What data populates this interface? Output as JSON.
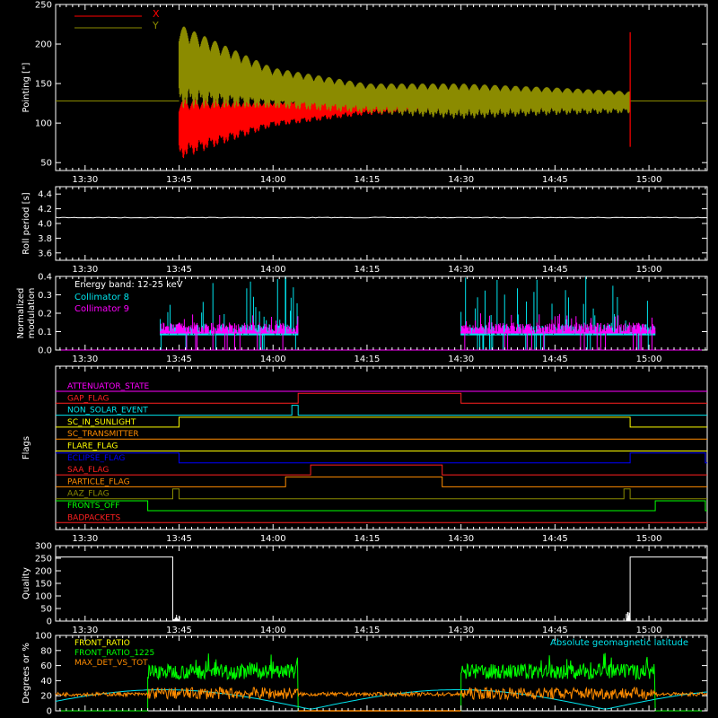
{
  "chart_data": [
    {
      "type": "line",
      "ylabel": "Pointing [\"]",
      "ylim": [
        40,
        250
      ],
      "yticks": [
        50,
        100,
        150,
        200,
        250
      ],
      "xlim": [
        "13:25",
        "15:09"
      ],
      "xticks": [
        "13:30",
        "13:45",
        "14:00",
        "14:15",
        "14:30",
        "14:45",
        "15:00"
      ],
      "legend": [
        {
          "name": "X",
          "color": "#ff0000"
        },
        {
          "name": "Y",
          "color": "#8b8b00"
        }
      ],
      "series": [
        {
          "name": "X",
          "color": "#ff0000",
          "baseline": 128,
          "active": [
            "13:45",
            "14:57"
          ],
          "upper": [
            [
              "13:45",
              130
            ],
            [
              "14:00",
              128
            ],
            [
              "14:15",
              137
            ],
            [
              "14:30",
              140
            ],
            [
              "14:45",
              138
            ],
            [
              "14:57",
              136
            ]
          ],
          "lower": [
            [
              "13:45",
              53
            ],
            [
              "14:00",
              95
            ],
            [
              "14:15",
              110
            ],
            [
              "14:30",
              112
            ],
            [
              "14:45",
              113
            ],
            [
              "14:57",
              118
            ]
          ]
        },
        {
          "name": "Y",
          "color": "#8b8b00",
          "baseline": 128,
          "active": [
            "13:45",
            "14:57"
          ],
          "upper": [
            [
              "13:45",
              225
            ],
            [
              "14:00",
              170
            ],
            [
              "14:15",
              150
            ],
            [
              "14:30",
              150
            ],
            [
              "14:45",
              145
            ],
            [
              "14:57",
              140
            ]
          ],
          "lower": [
            [
              "13:45",
              118
            ],
            [
              "14:00",
              118
            ],
            [
              "14:15",
              112
            ],
            [
              "14:30",
              105
            ],
            [
              "14:45",
              110
            ],
            [
              "14:57",
              112
            ]
          ]
        }
      ]
    },
    {
      "type": "line",
      "ylabel": "Roll period [s]",
      "ylim": [
        3.5,
        4.5
      ],
      "yticks": [
        3.6,
        3.8,
        4.0,
        4.2,
        4.4
      ],
      "xticks": [
        "13:30",
        "13:45",
        "14:00",
        "14:15",
        "14:30",
        "14:45",
        "15:00"
      ],
      "series": [
        {
          "name": "roll",
          "color": "#ffffff",
          "value": 4.08
        }
      ]
    },
    {
      "type": "line",
      "ylabel": "Normalized modulation",
      "ylim": [
        0,
        0.4
      ],
      "yticks": [
        0.0,
        0.1,
        0.2,
        0.3,
        0.4
      ],
      "xticks": [
        "13:30",
        "13:45",
        "14:00",
        "14:15",
        "14:30",
        "14:45",
        "15:00"
      ],
      "annotation": "Energy band: 12-25 keV",
      "series": [
        {
          "name": "Collimator 8",
          "color": "#00e5ee",
          "intervals": [
            [
              "13:42",
              "14:04"
            ],
            [
              "14:30",
              "15:01"
            ]
          ],
          "level": 0.09,
          "peak": 0.42
        },
        {
          "name": "Collimator 9",
          "color": "#ff00ff",
          "intervals": [
            [
              "13:42",
              "14:04"
            ],
            [
              "14:30",
              "15:01"
            ]
          ],
          "level": 0.1,
          "peak": 0.21
        }
      ]
    },
    {
      "type": "line",
      "ylabel": "Flags",
      "xticks": [
        "13:30",
        "13:45",
        "14:00",
        "14:15",
        "14:30",
        "14:45",
        "15:00"
      ],
      "flags": [
        {
          "name": "ATTENUATOR_STATE",
          "color": "#ff00ff",
          "on": []
        },
        {
          "name": "GAP_FLAG",
          "color": "#ff2020",
          "on": [
            [
              "14:04",
              "14:30"
            ]
          ]
        },
        {
          "name": "NON_SOLAR_EVENT",
          "color": "#00e5ee",
          "on": [
            [
              "14:03",
              "14:04"
            ]
          ]
        },
        {
          "name": "SC_IN_SUNLIGHT",
          "color": "#ffff00",
          "on": [
            [
              "13:45",
              "14:57"
            ]
          ]
        },
        {
          "name": "SC_TRANSMITTER",
          "color": "#ff8c00",
          "on": []
        },
        {
          "name": "FLARE_FLAG",
          "color": "#ffff00",
          "on": []
        },
        {
          "name": "ECLIPSE_FLAG",
          "color": "#0000ff",
          "on": [
            [
              "13:25",
              "13:45"
            ],
            [
              "14:57",
              "15:09"
            ]
          ]
        },
        {
          "name": "SAA_FLAG",
          "color": "#ff2020",
          "on": [
            [
              "14:06",
              "14:27"
            ]
          ]
        },
        {
          "name": "PARTICLE_FLAG",
          "color": "#ff8c00",
          "on": [
            [
              "14:02",
              "14:27"
            ]
          ]
        },
        {
          "name": "AAZ_FLAG",
          "color": "#8b8b00",
          "on": [
            [
              "13:44",
              "13:45"
            ],
            [
              "14:56",
              "14:57"
            ]
          ]
        },
        {
          "name": "FRONTS_OFF",
          "color": "#00ff00",
          "on": [
            [
              "13:25",
              "13:40"
            ],
            [
              "15:01",
              "15:09"
            ]
          ]
        },
        {
          "name": "BADPACKETS",
          "color": "#ff2020",
          "on": []
        }
      ]
    },
    {
      "type": "line",
      "ylabel": "Quality",
      "ylim": [
        0,
        300
      ],
      "yticks": [
        0,
        50,
        100,
        150,
        200,
        250,
        300
      ],
      "xticks": [
        "13:30",
        "13:45",
        "14:00",
        "14:15",
        "14:30",
        "14:45",
        "15:00"
      ],
      "series": [
        {
          "name": "quality",
          "color": "#ffffff",
          "high": 255,
          "highIntervals": [
            [
              "13:25",
              "13:44"
            ],
            [
              "14:57",
              "15:09"
            ]
          ]
        }
      ]
    },
    {
      "type": "line",
      "ylabel": "Degrees or %",
      "ylim": [
        0,
        100
      ],
      "yticks": [
        0,
        20,
        40,
        60,
        80,
        100
      ],
      "annotation": "Absolute geomagnetic latitude",
      "annotationColor": "#00e5ee",
      "series": [
        {
          "name": "FRONT_RATIO",
          "color": "#ffff00"
        },
        {
          "name": "FRONT_RATIO_1225",
          "color": "#00ff00",
          "level": 52,
          "intervals": [
            [
              "13:40",
              "14:04"
            ],
            [
              "14:30",
              "15:01"
            ]
          ]
        },
        {
          "name": "MAX_DET_VS_TOT",
          "color": "#ff8c00",
          "level": 20
        }
      ]
    }
  ]
}
